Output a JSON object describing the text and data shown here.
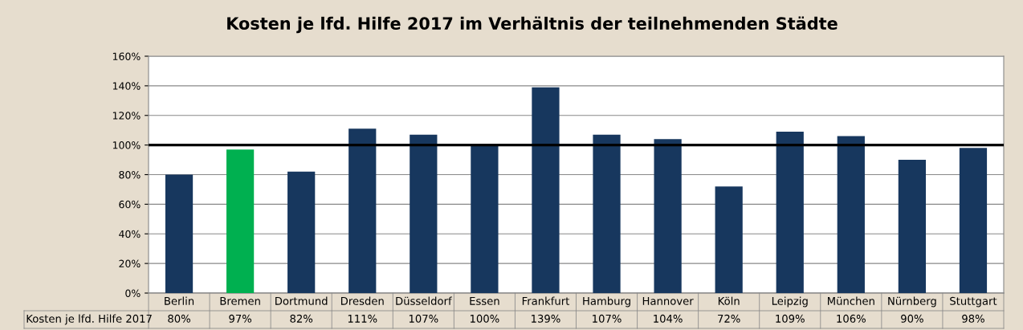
{
  "chart_data": {
    "type": "bar",
    "title": "Kosten je lfd. Hilfe 2017 im Verhältnis der teilnehmenden Städte",
    "categories": [
      "Berlin",
      "Bremen",
      "Dortmund",
      "Dresden",
      "Düsseldorf",
      "Essen",
      "Frankfurt",
      "Hamburg",
      "Hannover",
      "Köln",
      "Leipzig",
      "München",
      "Nürnberg",
      "Stuttgart"
    ],
    "series": [
      {
        "name": "Kosten je lfd. Hilfe 2017",
        "colors": [
          "#17375e",
          "#00b050",
          "#17375e",
          "#17375e",
          "#17375e",
          "#17375e",
          "#17375e",
          "#17375e",
          "#17375e",
          "#17375e",
          "#17375e",
          "#17375e",
          "#17375e",
          "#17375e"
        ],
        "values": [
          80,
          97,
          82,
          111,
          107,
          100,
          139,
          107,
          104,
          72,
          109,
          106,
          90,
          98
        ],
        "value_labels": [
          "80%",
          "97%",
          "82%",
          "111%",
          "107%",
          "100%",
          "139%",
          "107%",
          "104%",
          "72%",
          "109%",
          "106%",
          "90%",
          "98%"
        ]
      }
    ],
    "ylim": [
      0,
      160
    ],
    "yticks": [
      {
        "value": 0,
        "label": "0%"
      },
      {
        "value": 20,
        "label": "20%"
      },
      {
        "value": 40,
        "label": "40%"
      },
      {
        "value": 60,
        "label": "60%"
      },
      {
        "value": 80,
        "label": "80%"
      },
      {
        "value": 100,
        "label": "100%"
      },
      {
        "value": 120,
        "label": "120%"
      },
      {
        "value": 140,
        "label": "140%"
      },
      {
        "value": 160,
        "label": "160%"
      }
    ],
    "ref_lines": [
      {
        "axis": "y",
        "value": 100,
        "color": "#000000",
        "line_style": "solid"
      }
    ],
    "grid": "y"
  }
}
